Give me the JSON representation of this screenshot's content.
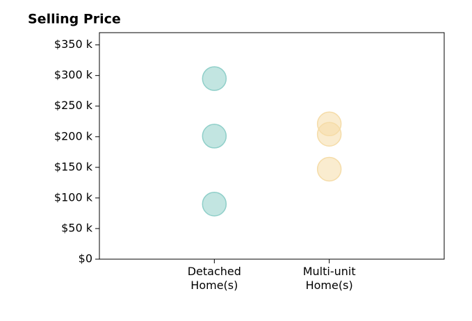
{
  "chart_data": {
    "type": "strip",
    "title": "Selling Price",
    "categories": [
      "Detached\nHome(s)",
      "Multi-unit\nHome(s)"
    ],
    "values": [
      [
        295000,
        201000,
        90000
      ],
      [
        221000,
        204000,
        147000
      ]
    ],
    "colors": [
      "#8fcfc9",
      "#f5dca8"
    ],
    "ylim": [
      0,
      370000
    ],
    "yticks": [
      {
        "value": 0,
        "label": "$0"
      },
      {
        "value": 50000,
        "label": "$50 k"
      },
      {
        "value": 100000,
        "label": "$100 k"
      },
      {
        "value": 150000,
        "label": "$150 k"
      },
      {
        "value": 200000,
        "label": "$200 k"
      },
      {
        "value": 250000,
        "label": "$250 k"
      },
      {
        "value": 300000,
        "label": "$300 k"
      },
      {
        "value": 350000,
        "label": "$350 k"
      }
    ],
    "grid": false
  }
}
